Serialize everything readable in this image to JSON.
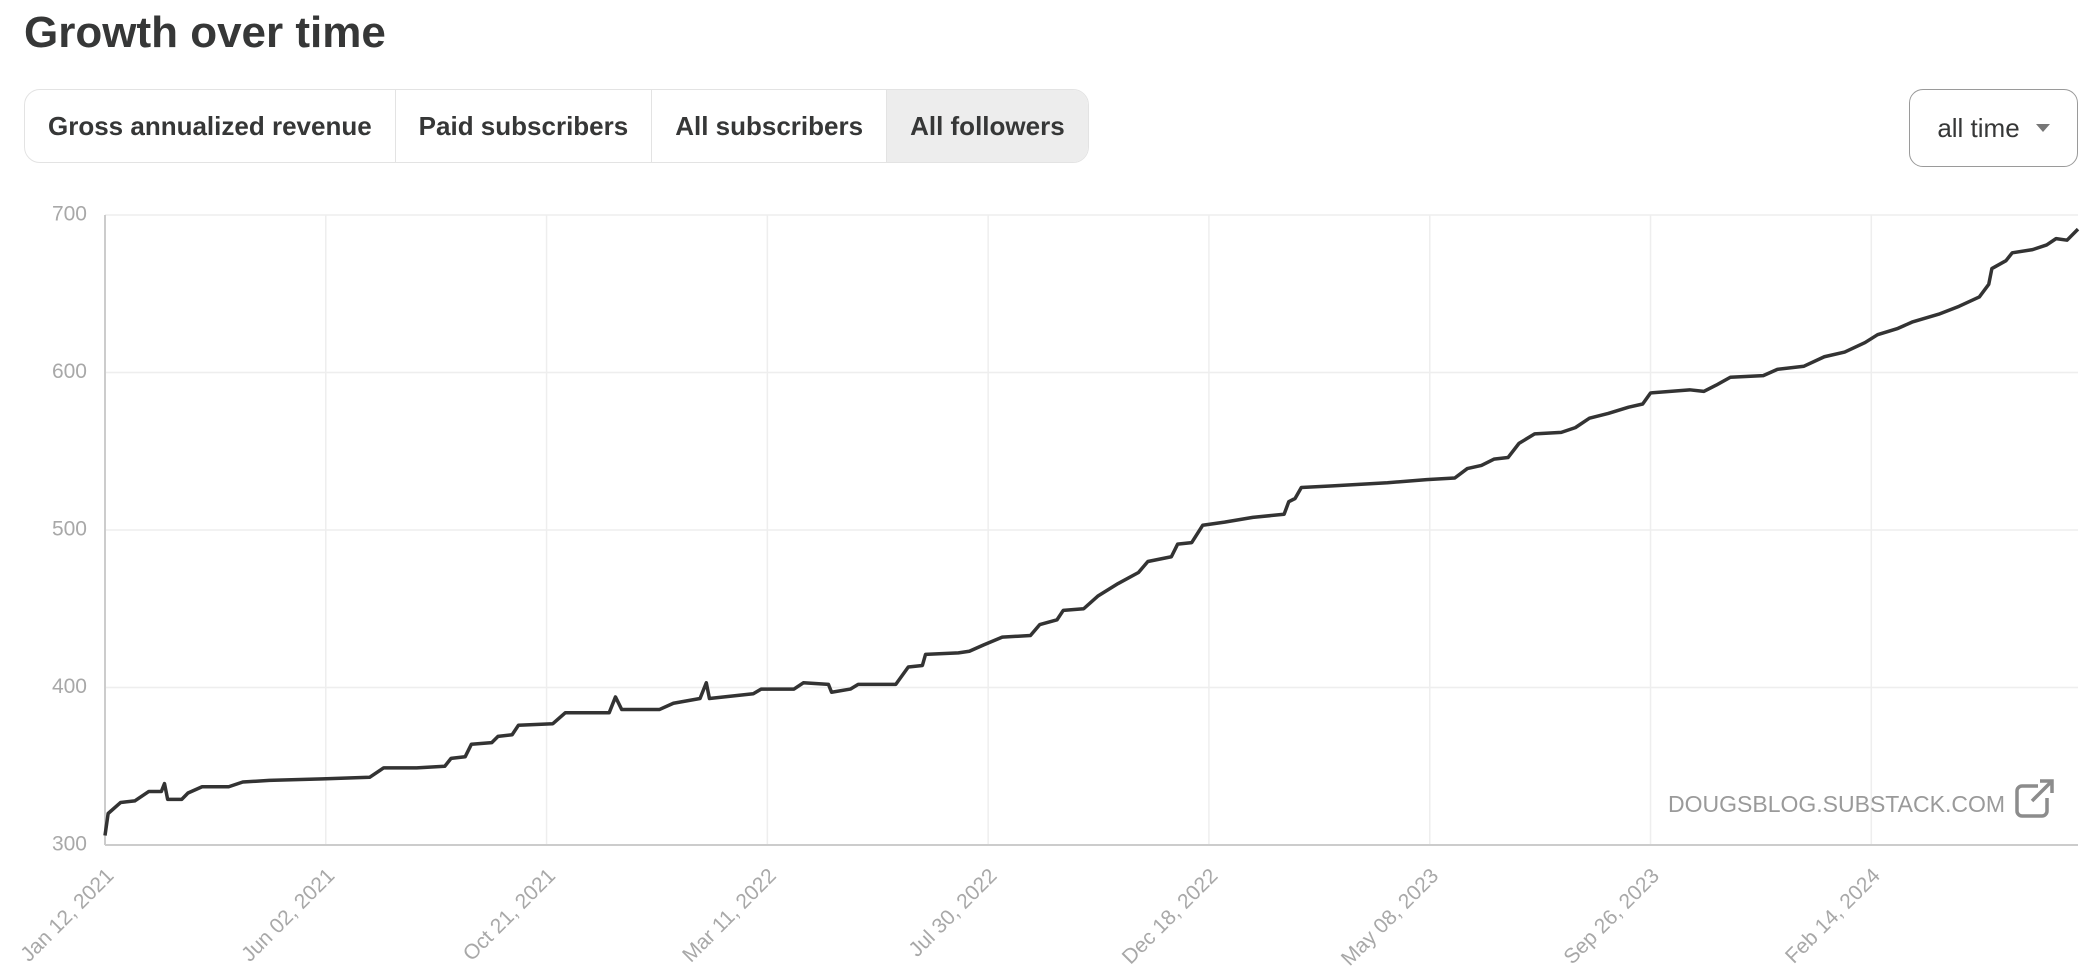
{
  "title": "Growth over time",
  "tabs": [
    "Gross annualized revenue",
    "Paid subscribers",
    "All subscribers",
    "All followers"
  ],
  "active_tab": 3,
  "range_select": "all time",
  "chart_data": {
    "type": "line",
    "color": "#333333",
    "grid": true,
    "annotation": "DOUGSBLOG.SUBSTACK.COM",
    "xlim": [
      "2021-01-12",
      "2024-06-25"
    ],
    "ylim": [
      300,
      700
    ],
    "yticks": [
      300,
      400,
      500,
      600,
      700
    ],
    "xticks": [
      {
        "value": "2021-01-12",
        "label": "Jan 12, 2021"
      },
      {
        "value": "2021-06-02",
        "label": "Jun 02, 2021"
      },
      {
        "value": "2021-10-21",
        "label": "Oct 21, 2021"
      },
      {
        "value": "2022-03-11",
        "label": "Mar 11, 2022"
      },
      {
        "value": "2022-07-30",
        "label": "Jul 30, 2022"
      },
      {
        "value": "2022-12-18",
        "label": "Dec 18, 2022"
      },
      {
        "value": "2023-05-08",
        "label": "May 08, 2023"
      },
      {
        "value": "2023-09-26",
        "label": "Sep 26, 2023"
      },
      {
        "value": "2024-02-14",
        "label": "Feb 14, 2024"
      }
    ],
    "x": [
      "2021-01-12",
      "2021-01-14",
      "2021-01-22",
      "2021-01-31",
      "2021-02-09",
      "2021-02-17",
      "2021-02-19",
      "2021-02-21",
      "2021-03-02",
      "2021-03-06",
      "2021-03-15",
      "2021-04-01",
      "2021-04-10",
      "2021-04-27",
      "2021-05-31",
      "2021-06-30",
      "2021-07-09",
      "2021-07-30",
      "2021-08-17",
      "2021-08-21",
      "2021-08-30",
      "2021-09-03",
      "2021-09-16",
      "2021-09-20",
      "2021-09-29",
      "2021-10-03",
      "2021-10-25",
      "2021-11-02",
      "2021-11-30",
      "2021-12-04",
      "2021-12-08",
      "2022-01-01",
      "2022-01-10",
      "2022-01-27",
      "2022-01-31",
      "2022-02-02",
      "2022-03-02",
      "2022-03-07",
      "2022-03-28",
      "2022-04-03",
      "2022-04-19",
      "2022-04-21",
      "2022-05-03",
      "2022-05-08",
      "2022-06-01",
      "2022-06-09",
      "2022-06-18",
      "2022-06-20",
      "2022-07-11",
      "2022-07-18",
      "2022-07-27",
      "2022-08-08",
      "2022-08-26",
      "2022-09-01",
      "2022-09-12",
      "2022-09-16",
      "2022-09-29",
      "2022-10-08",
      "2022-10-21",
      "2022-11-03",
      "2022-11-09",
      "2022-11-24",
      "2022-11-28",
      "2022-12-07",
      "2022-12-14",
      "2022-12-28",
      "2023-01-15",
      "2023-02-04",
      "2023-02-07",
      "2023-02-11",
      "2023-02-15",
      "2023-03-07",
      "2023-04-11",
      "2023-05-06",
      "2023-05-24",
      "2023-06-01",
      "2023-06-10",
      "2023-06-18",
      "2023-06-27",
      "2023-07-04",
      "2023-07-14",
      "2023-07-31",
      "2023-08-09",
      "2023-08-18",
      "2023-08-30",
      "2023-09-12",
      "2023-09-21",
      "2023-09-26",
      "2023-10-21",
      "2023-10-30",
      "2023-11-07",
      "2023-11-16",
      "2023-12-07",
      "2023-12-16",
      "2024-01-02",
      "2024-01-15",
      "2024-01-28",
      "2024-02-10",
      "2024-02-18",
      "2024-03-02",
      "2024-03-11",
      "2024-03-28",
      "2024-04-10",
      "2024-04-23",
      "2024-04-29",
      "2024-05-01",
      "2024-05-10",
      "2024-05-14",
      "2024-05-27",
      "2024-06-05",
      "2024-06-11",
      "2024-06-18",
      "2024-06-25"
    ],
    "values": [
      306,
      320,
      327,
      328,
      334,
      334,
      339,
      329,
      329,
      333,
      337,
      337,
      340,
      341,
      342,
      343,
      349,
      349,
      350,
      355,
      356,
      364,
      365,
      369,
      370,
      376,
      377,
      384,
      384,
      394,
      386,
      386,
      390,
      393,
      403,
      393,
      396,
      399,
      399,
      403,
      402,
      397,
      399,
      402,
      402,
      413,
      414,
      421,
      422,
      423,
      427,
      432,
      433,
      440,
      443,
      449,
      450,
      458,
      466,
      473,
      480,
      483,
      491,
      492,
      503,
      505,
      508,
      510,
      518,
      520,
      527,
      528,
      530,
      532,
      533,
      539,
      541,
      545,
      546,
      555,
      561,
      562,
      565,
      571,
      574,
      578,
      580,
      587,
      589,
      588,
      592,
      597,
      598,
      602,
      604,
      610,
      613,
      619,
      624,
      628,
      632,
      637,
      642,
      648,
      656,
      666,
      671,
      676,
      678,
      681,
      685,
      684,
      691
    ]
  }
}
